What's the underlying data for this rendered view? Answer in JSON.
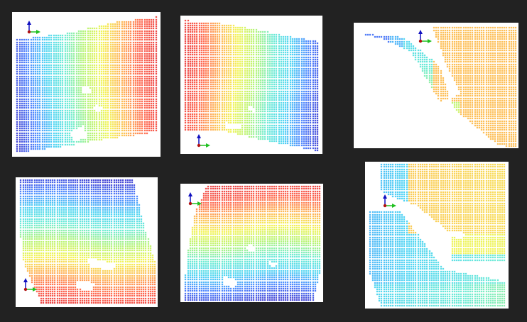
{
  "colormap": [
    "#1414c8",
    "#1e64ff",
    "#1ec8f0",
    "#46e6c8",
    "#a0f050",
    "#f0f028",
    "#ffa028",
    "#ff3c1e",
    "#e61414"
  ],
  "panels": [
    {
      "name": "panel-1",
      "field": "x-gradient-blue-to-red"
    },
    {
      "name": "panel-2",
      "field": "x-gradient-red-to-blue"
    },
    {
      "name": "panel-3",
      "field": "split-blue-orange"
    },
    {
      "name": "panel-4",
      "field": "y-gradient-blue-to-red"
    },
    {
      "name": "panel-5",
      "field": "y-gradient-red-to-blue"
    },
    {
      "name": "panel-6",
      "field": "split-orange-blue"
    }
  ],
  "axes_icon": {
    "z_color": "#1010c0",
    "x_color": "#20c020",
    "origin_color": "#b01010"
  }
}
